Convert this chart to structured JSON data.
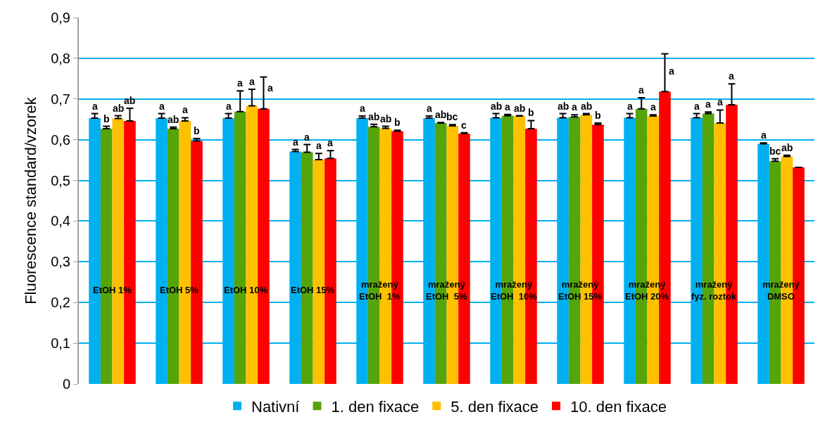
{
  "chart_data": {
    "type": "bar",
    "ylabel": "Fluorescence standard/vzorek",
    "categories": [
      "EtOH 1%",
      "EtOH 5%",
      "EtOH 10%",
      "EtOH 15%",
      "mražený\nEtOH  1%",
      "mražený\nEtOH  5%",
      "mražený\nEtOH  10%",
      "mražený\nEtOH 15%",
      "mražený\nEtOH 20%",
      "mražený\nfyz. roztok",
      "mražený\nDMSO"
    ],
    "series": [
      {
        "name": "Nativní",
        "color": "#00b0f0",
        "values": [
          0.653,
          0.653,
          0.653,
          0.571,
          0.653,
          0.653,
          0.654,
          0.654,
          0.654,
          0.654,
          0.59
        ],
        "errors": [
          [
            0.653,
            0.664
          ],
          [
            0.653,
            0.664
          ],
          [
            0.653,
            0.664
          ],
          [
            0.571,
            0.576
          ],
          [
            0.653,
            0.658
          ],
          [
            0.653,
            0.658
          ],
          [
            0.654,
            0.664
          ],
          [
            0.654,
            0.664
          ],
          [
            0.654,
            0.664
          ],
          [
            0.654,
            0.664
          ],
          [
            0.59,
            0.592
          ]
        ],
        "value_labels": [
          "a",
          "a",
          "a",
          "a",
          "a",
          "a",
          "ab",
          "ab",
          "a",
          "a",
          "a"
        ]
      },
      {
        "name": "1. den fixace",
        "color": "#55a50a",
        "values": [
          0.627,
          0.627,
          0.669,
          0.569,
          0.632,
          0.641,
          0.659,
          0.656,
          0.676,
          0.664,
          0.547
        ],
        "errors": [
          [
            0.627,
            0.633
          ],
          [
            0.627,
            0.631
          ],
          [
            0.669,
            0.72
          ],
          [
            0.569,
            0.588
          ],
          [
            0.632,
            0.638
          ],
          [
            0.641,
            0.642
          ],
          [
            0.659,
            0.662
          ],
          [
            0.656,
            0.661
          ],
          [
            0.676,
            0.703
          ],
          [
            0.664,
            0.668
          ],
          [
            0.547,
            0.553
          ]
        ],
        "value_labels": [
          "b",
          "ab",
          "a",
          "a",
          "ab",
          "ab",
          "a",
          "a",
          "a",
          "a",
          "bc"
        ]
      },
      {
        "name": "5. den fixace",
        "color": "#ffc000",
        "values": [
          0.652,
          0.646,
          0.683,
          0.551,
          0.628,
          0.634,
          0.658,
          0.661,
          0.658,
          0.641,
          0.559
        ],
        "errors": [
          [
            0.652,
            0.659
          ],
          [
            0.646,
            0.654
          ],
          [
            0.683,
            0.724
          ],
          [
            0.551,
            0.566
          ],
          [
            0.628,
            0.633
          ],
          [
            0.634,
            0.637
          ],
          [
            0.658,
            0.659
          ],
          [
            0.661,
            0.664
          ],
          [
            0.658,
            0.661
          ],
          [
            0.641,
            0.673
          ],
          [
            0.559,
            0.562
          ]
        ],
        "value_labels": [
          "ab",
          "a",
          "a",
          "a",
          "ab",
          "bc",
          "ab",
          "ab",
          "a",
          "a",
          "ab"
        ]
      },
      {
        "name": "10. den fixace",
        "color": "#ff0000",
        "values": [
          0.646,
          0.597,
          0.676,
          0.554,
          0.621,
          0.615,
          0.627,
          0.637,
          0.718,
          0.686,
          0.532
        ],
        "errors": [
          [
            0.646,
            0.677
          ],
          [
            0.597,
            0.603
          ],
          [
            0.676,
            0.754
          ],
          [
            0.554,
            0.573
          ],
          [
            0.621,
            0.623
          ],
          [
            0.615,
            0.617
          ],
          [
            0.627,
            0.647
          ],
          [
            0.637,
            0.641
          ],
          [
            0.718,
            0.811
          ],
          [
            0.686,
            0.737
          ],
          null
        ],
        "value_labels": [
          "ab",
          "b",
          "a",
          "a",
          "b",
          "c",
          "b",
          "b",
          "a",
          "a",
          null
        ]
      }
    ],
    "ylim": [
      0,
      0.9
    ],
    "yticks": [
      0,
      {
        "value": 0.1,
        "label": "0,1"
      },
      {
        "value": 0.2,
        "label": "0,2"
      },
      {
        "value": 0.3,
        "label": "0,3"
      },
      {
        "value": 0.4,
        "label": "0,4"
      },
      {
        "value": 0.5,
        "label": "0,5"
      },
      {
        "value": 0.6,
        "label": "0,6"
      },
      {
        "value": 0.7,
        "label": "0,7"
      },
      {
        "value": 0.8,
        "label": "0,8"
      },
      {
        "value": 0.9,
        "label": "0,9"
      }
    ],
    "grid": "y",
    "legend": "bottom"
  }
}
